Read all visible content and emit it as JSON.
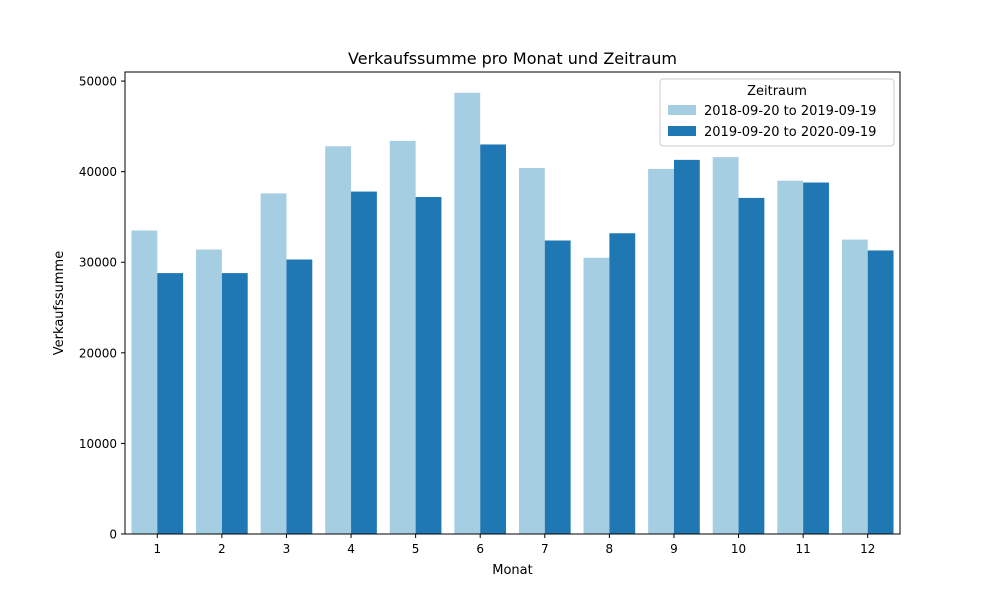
{
  "chart_data": {
    "type": "bar",
    "title": "Verkaufssumme pro Monat und Zeitraum",
    "xlabel": "Monat",
    "ylabel": "Verkaufssumme",
    "categories": [
      "1",
      "2",
      "3",
      "4",
      "5",
      "6",
      "7",
      "8",
      "9",
      "10",
      "11",
      "12"
    ],
    "ylim": [
      0,
      51000
    ],
    "yticks": [
      0,
      10000,
      20000,
      30000,
      40000,
      50000
    ],
    "grid": false,
    "legend": {
      "title": "Zeitraum",
      "placement": "top-right"
    },
    "series": [
      {
        "name": "2018-09-20 to 2019-09-19",
        "color": "#a6cee3",
        "values": [
          33500,
          31400,
          37600,
          42800,
          43400,
          48700,
          40400,
          30500,
          40300,
          41600,
          39000,
          32500
        ]
      },
      {
        "name": "2019-09-20 to 2020-09-19",
        "color": "#1f78b4",
        "values": [
          28800,
          28800,
          30300,
          37800,
          37200,
          43000,
          32400,
          33200,
          41300,
          37100,
          38800,
          31300
        ]
      }
    ]
  }
}
